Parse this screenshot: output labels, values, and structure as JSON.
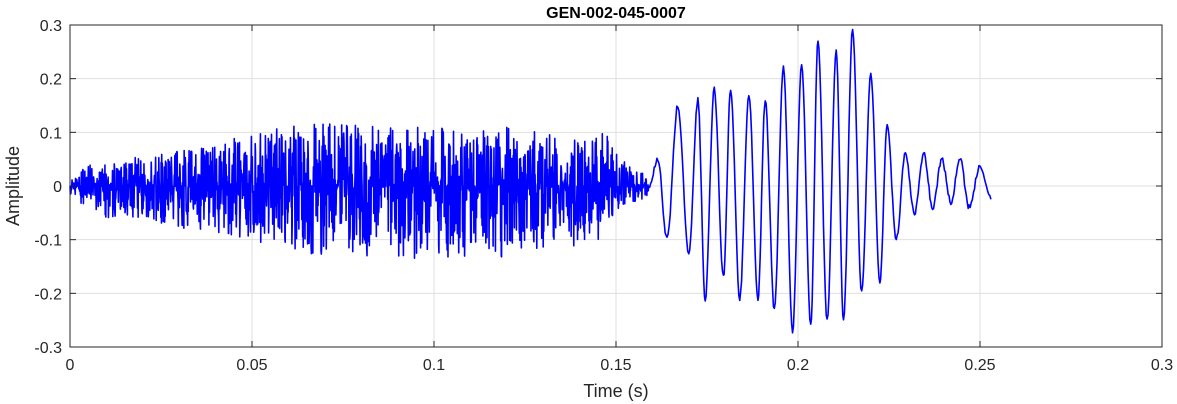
{
  "chart_data": {
    "type": "line",
    "title": "GEN-002-045-0007",
    "xlabel": "Time (s)",
    "ylabel": "Amplitude",
    "xlim": [
      0,
      0.3
    ],
    "ylim": [
      -0.3,
      0.3
    ],
    "xticks": [
      0,
      0.05,
      0.1,
      0.15,
      0.2,
      0.25,
      0.3
    ],
    "xtick_labels": [
      "0",
      "0.05",
      "0.1",
      "0.15",
      "0.2",
      "0.25",
      "0.3"
    ],
    "yticks": [
      -0.3,
      -0.2,
      -0.1,
      0,
      0.1,
      0.2,
      0.3
    ],
    "ytick_labels": [
      "-0.3",
      "-0.2",
      "-0.1",
      "0",
      "0.1",
      "0.2",
      "0.3"
    ],
    "grid": true,
    "line_color": "#0000ff",
    "series": [
      {
        "signal_end": 0.253,
        "envelope_points": [
          {
            "x": 0.0,
            "max": 0.01,
            "min": -0.02
          },
          {
            "x": 0.005,
            "max": 0.04,
            "min": -0.04
          },
          {
            "x": 0.01,
            "max": 0.04,
            "min": -0.06
          },
          {
            "x": 0.02,
            "max": 0.06,
            "min": -0.06
          },
          {
            "x": 0.03,
            "max": 0.07,
            "min": -0.08
          },
          {
            "x": 0.04,
            "max": 0.08,
            "min": -0.09
          },
          {
            "x": 0.05,
            "max": 0.1,
            "min": -0.1
          },
          {
            "x": 0.06,
            "max": 0.11,
            "min": -0.12
          },
          {
            "x": 0.07,
            "max": 0.12,
            "min": -0.13
          },
          {
            "x": 0.08,
            "max": 0.12,
            "min": -0.13
          },
          {
            "x": 0.09,
            "max": 0.11,
            "min": -0.14
          },
          {
            "x": 0.1,
            "max": 0.11,
            "min": -0.15
          },
          {
            "x": 0.11,
            "max": 0.1,
            "min": -0.13
          },
          {
            "x": 0.12,
            "max": 0.11,
            "min": -0.14
          },
          {
            "x": 0.13,
            "max": 0.1,
            "min": -0.12
          },
          {
            "x": 0.14,
            "max": 0.1,
            "min": -0.11
          },
          {
            "x": 0.147,
            "max": 0.11,
            "min": -0.1
          },
          {
            "x": 0.15,
            "max": 0.06,
            "min": -0.05
          },
          {
            "x": 0.155,
            "max": 0.03,
            "min": -0.03
          },
          {
            "x": 0.159,
            "max": 0.02,
            "min": -0.02
          }
        ],
        "oscillation_peaks": [
          {
            "x": 0.1615,
            "y": 0.05
          },
          {
            "x": 0.164,
            "y": -0.1
          },
          {
            "x": 0.167,
            "y": 0.15
          },
          {
            "x": 0.17,
            "y": -0.13
          },
          {
            "x": 0.1725,
            "y": 0.16
          },
          {
            "x": 0.1745,
            "y": -0.21
          },
          {
            "x": 0.177,
            "y": 0.18
          },
          {
            "x": 0.1795,
            "y": -0.17
          },
          {
            "x": 0.1815,
            "y": 0.18
          },
          {
            "x": 0.184,
            "y": -0.21
          },
          {
            "x": 0.1865,
            "y": 0.17
          },
          {
            "x": 0.189,
            "y": -0.21
          },
          {
            "x": 0.191,
            "y": 0.16
          },
          {
            "x": 0.1935,
            "y": -0.23
          },
          {
            "x": 0.196,
            "y": 0.22
          },
          {
            "x": 0.1985,
            "y": -0.27
          },
          {
            "x": 0.201,
            "y": 0.23
          },
          {
            "x": 0.2035,
            "y": -0.26
          },
          {
            "x": 0.2055,
            "y": 0.27
          },
          {
            "x": 0.208,
            "y": -0.25
          },
          {
            "x": 0.2105,
            "y": 0.25
          },
          {
            "x": 0.2125,
            "y": -0.25
          },
          {
            "x": 0.215,
            "y": 0.29
          },
          {
            "x": 0.2175,
            "y": -0.2
          },
          {
            "x": 0.22,
            "y": 0.21
          },
          {
            "x": 0.2225,
            "y": -0.18
          },
          {
            "x": 0.2245,
            "y": 0.11
          },
          {
            "x": 0.227,
            "y": -0.1
          },
          {
            "x": 0.2295,
            "y": 0.06
          },
          {
            "x": 0.232,
            "y": -0.05
          },
          {
            "x": 0.2345,
            "y": 0.06
          },
          {
            "x": 0.237,
            "y": -0.04
          },
          {
            "x": 0.2395,
            "y": 0.05
          },
          {
            "x": 0.242,
            "y": -0.03
          },
          {
            "x": 0.2445,
            "y": 0.05
          },
          {
            "x": 0.247,
            "y": -0.04
          },
          {
            "x": 0.25,
            "y": 0.035
          },
          {
            "x": 0.253,
            "y": -0.02
          }
        ]
      }
    ]
  }
}
